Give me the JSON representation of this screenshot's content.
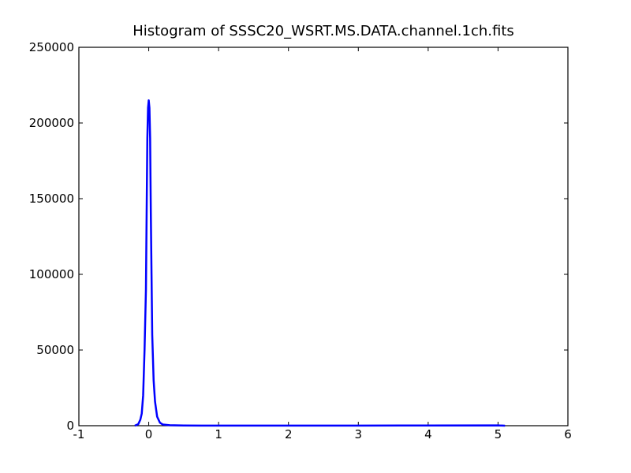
{
  "chart_data": {
    "type": "line",
    "title": "Histogram of SSSC20_WSRT.MS.DATA.channel.1ch.fits",
    "xlabel": "",
    "ylabel": "",
    "xlim": [
      -1,
      6
    ],
    "ylim": [
      0,
      250000
    ],
    "grid": false,
    "x_ticks": [
      -1,
      0,
      1,
      2,
      3,
      4,
      5,
      6
    ],
    "y_ticks": [
      0,
      50000,
      100000,
      150000,
      200000,
      250000
    ],
    "series": [
      {
        "color": "#0000ff",
        "points": [
          [
            -0.2,
            0
          ],
          [
            -0.15,
            1000
          ],
          [
            -0.12,
            4000
          ],
          [
            -0.1,
            8000
          ],
          [
            -0.08,
            20000
          ],
          [
            -0.06,
            50000
          ],
          [
            -0.04,
            90000
          ],
          [
            -0.03,
            140000
          ],
          [
            -0.02,
            190000
          ],
          [
            -0.01,
            210000
          ],
          [
            0.0,
            215000
          ],
          [
            0.01,
            210000
          ],
          [
            0.02,
            190000
          ],
          [
            0.03,
            140000
          ],
          [
            0.04,
            100000
          ],
          [
            0.05,
            60000
          ],
          [
            0.07,
            30000
          ],
          [
            0.09,
            16000
          ],
          [
            0.12,
            6000
          ],
          [
            0.16,
            2000
          ],
          [
            0.2,
            800
          ],
          [
            0.3,
            300
          ],
          [
            0.5,
            100
          ],
          [
            1.0,
            40
          ],
          [
            2.0,
            40
          ],
          [
            3.0,
            80
          ],
          [
            4.0,
            120
          ],
          [
            5.0,
            200
          ],
          [
            5.1,
            0
          ]
        ]
      }
    ]
  }
}
